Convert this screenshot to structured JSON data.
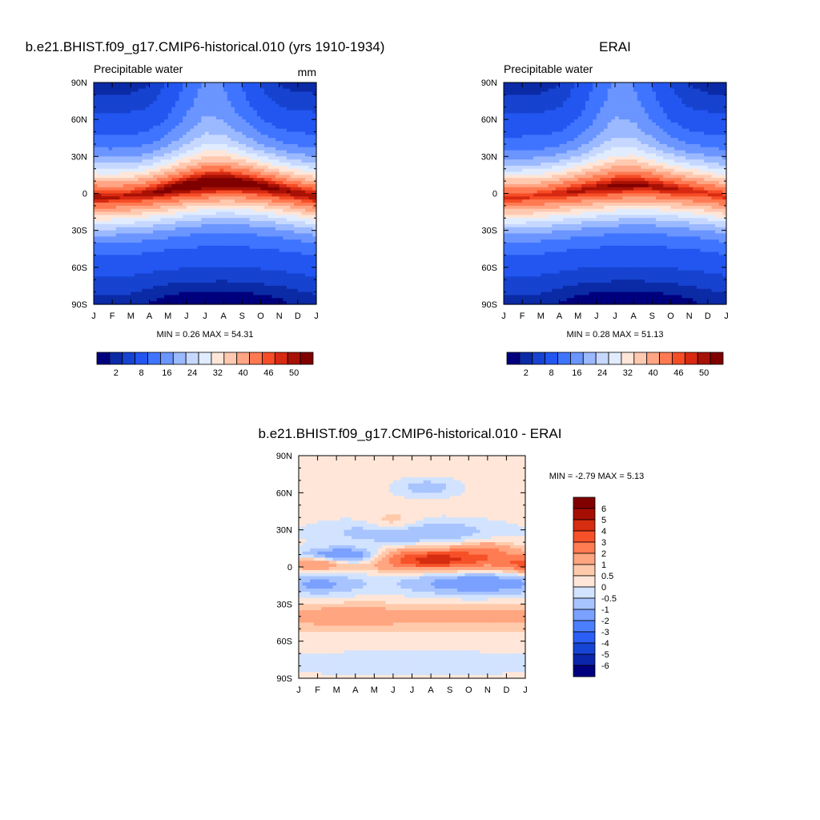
{
  "panels": [
    {
      "title": "b.e21.BHIST.f09_g17.CMIP6-historical.010 (yrs 1910-1934)",
      "subtitle_left": "Precipitable water",
      "subtitle_right": "mm",
      "stats": "MIN =   0.26 MAX =  54.31"
    },
    {
      "title": "ERAI",
      "subtitle_left": "Precipitable water",
      "subtitle_right": "",
      "stats": "MIN =   0.28 MAX =  51.13"
    },
    {
      "title": "b.e21.BHIST.f09_g17.CMIP6-historical.010 - ERAI",
      "subtitle_left": "",
      "subtitle_right": "",
      "stats": "MIN =  -2.79 MAX =   5.13"
    }
  ],
  "colors": {
    "absolute_scale": [
      "#00007e",
      "#0b2aa6",
      "#1643cf",
      "#2356f0",
      "#3f74ff",
      "#6b95ff",
      "#9bb9ff",
      "#c6d8ff",
      "#e1ecff",
      "#ffe6d8",
      "#ffc9b0",
      "#ffa584",
      "#ff7a52",
      "#f64d27",
      "#d82a12",
      "#a81105",
      "#800000"
    ],
    "difference_scale": [
      "#00007e",
      "#0b25ab",
      "#1645d6",
      "#2c5ff5",
      "#4c7fff",
      "#7aa1ff",
      "#a8c4ff",
      "#d2e3ff",
      "#ffe6d8",
      "#ffcaab",
      "#ffa580",
      "#ff7c52",
      "#f65128",
      "#d62c10",
      "#a60e04",
      "#800000"
    ]
  },
  "chart_data": [
    {
      "type": "heatmap",
      "title": "b.e21.BHIST.f09_g17.CMIP6-historical.010 (yrs 1910-1934)",
      "subtitle": "Precipitable water",
      "units": "mm",
      "x": [
        "J",
        "F",
        "M",
        "A",
        "M",
        "J",
        "J",
        "A",
        "S",
        "O",
        "N",
        "D",
        "J"
      ],
      "y": [
        "90N",
        "60N",
        "30N",
        "0",
        "30S",
        "60S",
        "90S"
      ],
      "ylim": [
        -90,
        90
      ],
      "field": {
        "itcz_lat_by_month": [
          -3,
          -3,
          -2,
          0,
          3,
          6,
          8,
          9,
          8,
          6,
          3,
          0,
          -3
        ],
        "north_pole_by_month": [
          1.5,
          1.5,
          1.5,
          2,
          4.5,
          9,
          13,
          12,
          8,
          4,
          2,
          1.5,
          1.5
        ],
        "south_pole_by_month": [
          1.5,
          1.5,
          1.5,
          1,
          0.6,
          0.4,
          0.3,
          0.3,
          0.4,
          0.6,
          0.8,
          1.2,
          1.5
        ],
        "peak_by_month": [
          50,
          49,
          49,
          50,
          52,
          53,
          54,
          54,
          53,
          52,
          51,
          50,
          50
        ]
      },
      "legend_ticks": [
        "2",
        "8",
        "16",
        "24",
        "32",
        "40",
        "46",
        "50"
      ],
      "levels": [
        1,
        2,
        4,
        8,
        12,
        16,
        20,
        24,
        28,
        32,
        36,
        40,
        44,
        46,
        48,
        50
      ],
      "stats": {
        "min": 0.26,
        "max": 54.31
      }
    },
    {
      "type": "heatmap",
      "title": "ERAI",
      "subtitle": "Precipitable water",
      "x": [
        "J",
        "F",
        "M",
        "A",
        "M",
        "J",
        "J",
        "A",
        "S",
        "O",
        "N",
        "D",
        "J"
      ],
      "y": [
        "90N",
        "60N",
        "30N",
        "0",
        "30S",
        "60S",
        "90S"
      ],
      "ylim": [
        -90,
        90
      ],
      "field": {
        "itcz_lat_by_month": [
          -3,
          -3,
          -2,
          0,
          2,
          4,
          6,
          7,
          6,
          4,
          2,
          0,
          -3
        ],
        "north_pole_by_month": [
          1.5,
          1.5,
          1.5,
          2,
          4.5,
          9,
          13,
          12,
          8,
          4,
          2,
          1.5,
          1.5
        ],
        "south_pole_by_month": [
          1.5,
          1.5,
          1.5,
          1,
          0.6,
          0.4,
          0.3,
          0.3,
          0.4,
          0.6,
          0.8,
          1.2,
          1.5
        ],
        "peak_by_month": [
          47,
          47,
          47,
          48,
          49,
          50,
          51,
          51,
          50,
          49,
          48,
          47,
          47
        ]
      },
      "legend_ticks": [
        "2",
        "8",
        "16",
        "24",
        "32",
        "40",
        "46",
        "50"
      ],
      "levels": [
        1,
        2,
        4,
        8,
        12,
        16,
        20,
        24,
        28,
        32,
        36,
        40,
        44,
        46,
        48,
        50
      ],
      "stats": {
        "min": 0.28,
        "max": 51.13
      }
    },
    {
      "type": "heatmap",
      "title": "b.e21.BHIST.f09_g17.CMIP6-historical.010 - ERAI",
      "x": [
        "J",
        "F",
        "M",
        "A",
        "M",
        "J",
        "J",
        "A",
        "S",
        "O",
        "N",
        "D",
        "J"
      ],
      "y": [
        "90N",
        "60N",
        "30N",
        "0",
        "30S",
        "60S",
        "90S"
      ],
      "ylim": [
        -90,
        90
      ],
      "field": {
        "features": [
          {
            "month": 7.0,
            "lat": 6,
            "amp": 4.5,
            "wmon": 2.6,
            "wlat": 6
          },
          {
            "month": 2.6,
            "lat": 8,
            "amp": -3.2,
            "wmon": 1.8,
            "wlat": 5
          },
          {
            "month": 6.0,
            "lat": 28,
            "amp": -1.4,
            "wmon": 3.5,
            "wlat": 8
          },
          {
            "month": 9.5,
            "lat": -13,
            "amp": -1.8,
            "wmon": 3.2,
            "wlat": 8
          },
          {
            "month": 1.0,
            "lat": -14,
            "amp": -1.4,
            "wmon": 1.8,
            "wlat": 7
          },
          {
            "month": 6.8,
            "lat": 64,
            "amp": -1.1,
            "wmon": 1.3,
            "wlat": 6
          },
          {
            "month": 1.0,
            "lat": 3,
            "amp": 2.5,
            "wmon": 1.2,
            "wlat": 4
          },
          {
            "month": 12.0,
            "lat": 2,
            "amp": 2.5,
            "wmon": 1.0,
            "wlat": 5
          },
          {
            "month": 2.5,
            "lat": -40,
            "amp": 1.2,
            "wmon": 3.0,
            "wlat": 7
          },
          {
            "month": 10.5,
            "lat": -40,
            "amp": 1.0,
            "wmon": 3.0,
            "wlat": 7
          },
          {
            "month": 6.0,
            "lat": -78,
            "amp": -0.7,
            "wmon": 6.0,
            "wlat": 8
          },
          {
            "month": 10.0,
            "lat": 15,
            "amp": 1.2,
            "wmon": 1.0,
            "wlat": 5
          },
          {
            "month": 5.0,
            "lat": 36,
            "amp": 1.0,
            "wmon": 1.0,
            "wlat": 5
          }
        ],
        "background": 0.3
      },
      "legend_ticks": [
        "6",
        "5",
        "4",
        "3",
        "2",
        "1",
        "0.5",
        "0",
        "-0.5",
        "-1",
        "-2",
        "-3",
        "-4",
        "-5",
        "-6"
      ],
      "levels": [
        -6,
        -5,
        -4,
        -3,
        -2,
        -1,
        -0.5,
        0,
        0.5,
        1,
        2,
        3,
        4,
        5,
        6
      ],
      "stats": {
        "min": -2.79,
        "max": 5.13
      }
    }
  ]
}
